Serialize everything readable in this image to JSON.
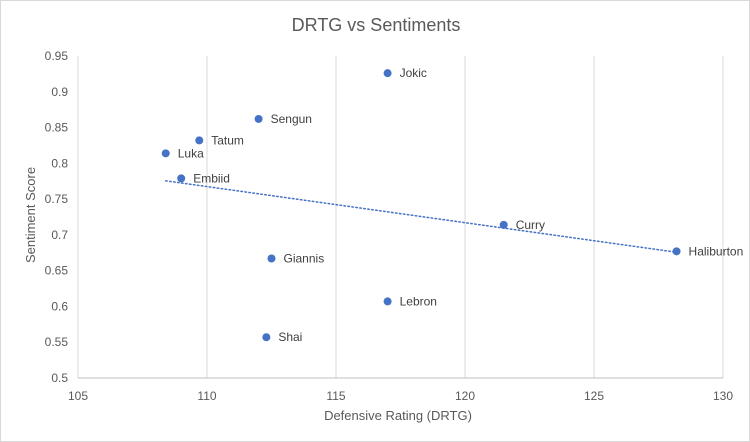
{
  "chart_data": {
    "type": "scatter",
    "title": "DRTG  vs Sentiments",
    "xlabel": "Defensive Rating (DRTG)",
    "ylabel": "Sentiment Score",
    "xlim": [
      105,
      130
    ],
    "ylim": [
      0.5,
      0.95
    ],
    "xticks": [
      "105",
      "110",
      "115",
      "120",
      "125",
      "130"
    ],
    "yticks": [
      "0.5",
      "0.55",
      "0.6",
      "0.65",
      "0.7",
      "0.75",
      "0.8",
      "0.85",
      "0.9",
      "0.95"
    ],
    "grid": "vertical",
    "marker_color": "#4472c4",
    "trendline": {
      "type": "linear",
      "style": "dotted",
      "color": "#4472c4"
    },
    "points": [
      {
        "label": "Jokic",
        "x": 117.0,
        "y": 0.926
      },
      {
        "label": "Sengun",
        "x": 112.0,
        "y": 0.862
      },
      {
        "label": "Tatum",
        "x": 109.7,
        "y": 0.832
      },
      {
        "label": "Luka",
        "x": 108.4,
        "y": 0.814
      },
      {
        "label": "Embiid",
        "x": 109.0,
        "y": 0.779
      },
      {
        "label": "Curry",
        "x": 121.5,
        "y": 0.714
      },
      {
        "label": "Haliburton",
        "x": 128.2,
        "y": 0.677
      },
      {
        "label": "Giannis",
        "x": 112.5,
        "y": 0.667
      },
      {
        "label": "Lebron",
        "x": 117.0,
        "y": 0.607
      },
      {
        "label": "Shai",
        "x": 112.3,
        "y": 0.557
      }
    ]
  }
}
